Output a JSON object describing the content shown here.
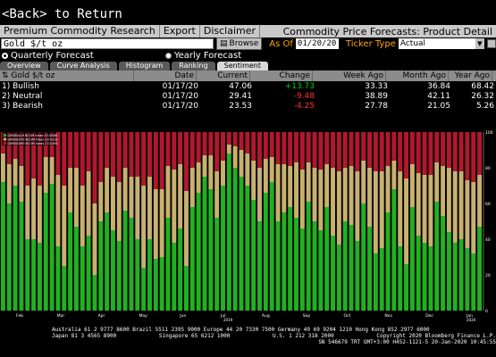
{
  "back_label": "<Back> to Return",
  "menu": {
    "items": [
      "Premium Commodity Research",
      "Export",
      "Disclaimer"
    ],
    "title": "Commodity Price Forecasts: Product Detail"
  },
  "controls": {
    "ticker": "Gold $/t oz",
    "browse": "Browse",
    "as_of_label": "As Of",
    "as_of_value": "01/20/20",
    "ticker_type_label": "Ticker Type",
    "ticker_type_value": "Actual"
  },
  "radios": {
    "quarterly": "Quarterly Forecast",
    "yearly": "Yearly Forecast"
  },
  "tabs": [
    "Overview",
    "Curve Analysis",
    "Histogram",
    "Ranking",
    "Sentiment"
  ],
  "table": {
    "headers": [
      "Gold $/t oz",
      "Date",
      "Current",
      "Change",
      "Week Ago",
      "Month Ago",
      "Year Ago"
    ],
    "rows": [
      {
        "num": "1)",
        "name": "Bullish",
        "date": "01/17/20",
        "current": "47.06",
        "change": "+13.73",
        "week": "33.33",
        "month": "36.84",
        "year": "68.42"
      },
      {
        "num": "2)",
        "name": "Neutral",
        "date": "01/17/20",
        "current": "29.41",
        "change": "-9.48",
        "week": "38.89",
        "month": "42.11",
        "year": "26.32"
      },
      {
        "num": "3)",
        "name": "Bearish",
        "date": "01/17/20",
        "current": "23.53",
        "change": "-4.25",
        "week": "27.78",
        "month": "21.05",
        "year": "5.26"
      }
    ]
  },
  "colors": {
    "bullish": "#22b022",
    "neutral": "#c8b070",
    "bearish": "#b0182e"
  },
  "chart_data": {
    "type": "bar",
    "stacked": true,
    "ylim": [
      0,
      100
    ],
    "yticks": [
      0,
      20,
      40,
      60,
      80,
      100
    ],
    "legend": [
      "GMSBULL9 BCOM Index 47.0588",
      "GMSNEUT9 BCOM Index 29.4118",
      "GMSBEAR9 BCOM Index 23.5294"
    ],
    "xticks": [
      "Feb",
      "Mar",
      "Apr",
      "May",
      "Jun",
      "Jul",
      "Aug",
      "Sep",
      "Oct",
      "Nov",
      "Dec",
      "Jan"
    ],
    "xsublabels": [
      "2019",
      "2020"
    ],
    "series": [
      {
        "name": "GMSBULL9 BCOM Index",
        "values": [
          72,
          60,
          70,
          61,
          40,
          40,
          38,
          66,
          71,
          36,
          25,
          55,
          47,
          36,
          42,
          20,
          50,
          55,
          45,
          39,
          56,
          52,
          40,
          24,
          40,
          29,
          30,
          52,
          38,
          46,
          25,
          58,
          66,
          75,
          68,
          52,
          70,
          88,
          80,
          75,
          70,
          62,
          50,
          66,
          72,
          50,
          55,
          58,
          52,
          46,
          61,
          50,
          45,
          58,
          42,
          37,
          50,
          48,
          39,
          60,
          47,
          32,
          35,
          55,
          68,
          36,
          26,
          58,
          42,
          38,
          36,
          61,
          53,
          44,
          38,
          40,
          35,
          32,
          47
        ]
      },
      {
        "name": "GMSNEUT9 BCOM Index",
        "values": [
          16,
          22,
          15,
          20,
          30,
          34,
          32,
          20,
          15,
          40,
          45,
          25,
          33,
          34,
          36,
          40,
          22,
          25,
          30,
          33,
          24,
          23,
          35,
          46,
          35,
          39,
          38,
          29,
          41,
          36,
          42,
          22,
          17,
          12,
          19,
          26,
          14,
          5,
          12,
          15,
          18,
          22,
          30,
          19,
          14,
          32,
          27,
          23,
          31,
          33,
          22,
          30,
          34,
          24,
          38,
          41,
          30,
          33,
          39,
          24,
          33,
          46,
          43,
          26,
          16,
          42,
          48,
          24,
          35,
          38,
          40,
          22,
          28,
          36,
          40,
          38,
          38,
          40,
          29
        ]
      }
    ]
  },
  "footer": {
    "line1": "Australia 61 2 9777 8600  Brazil 5511 2395 9000  Europe 44 20 7330 7500  Germany 49 69 9204 1210  Hong Kong 852 2977 6000",
    "line2a": "Japan 81 3 4565 8900",
    "line2b": "Singapore 65 6212 1000",
    "line2c": "U.S. 1 212 318 2000",
    "line2d": "Copyright 2020 Bloomberg Finance L.P.",
    "line3": "SN 546679 TRT  GMT+3:00 H452-1121-5 20-Jan-2020 10:45:55"
  }
}
